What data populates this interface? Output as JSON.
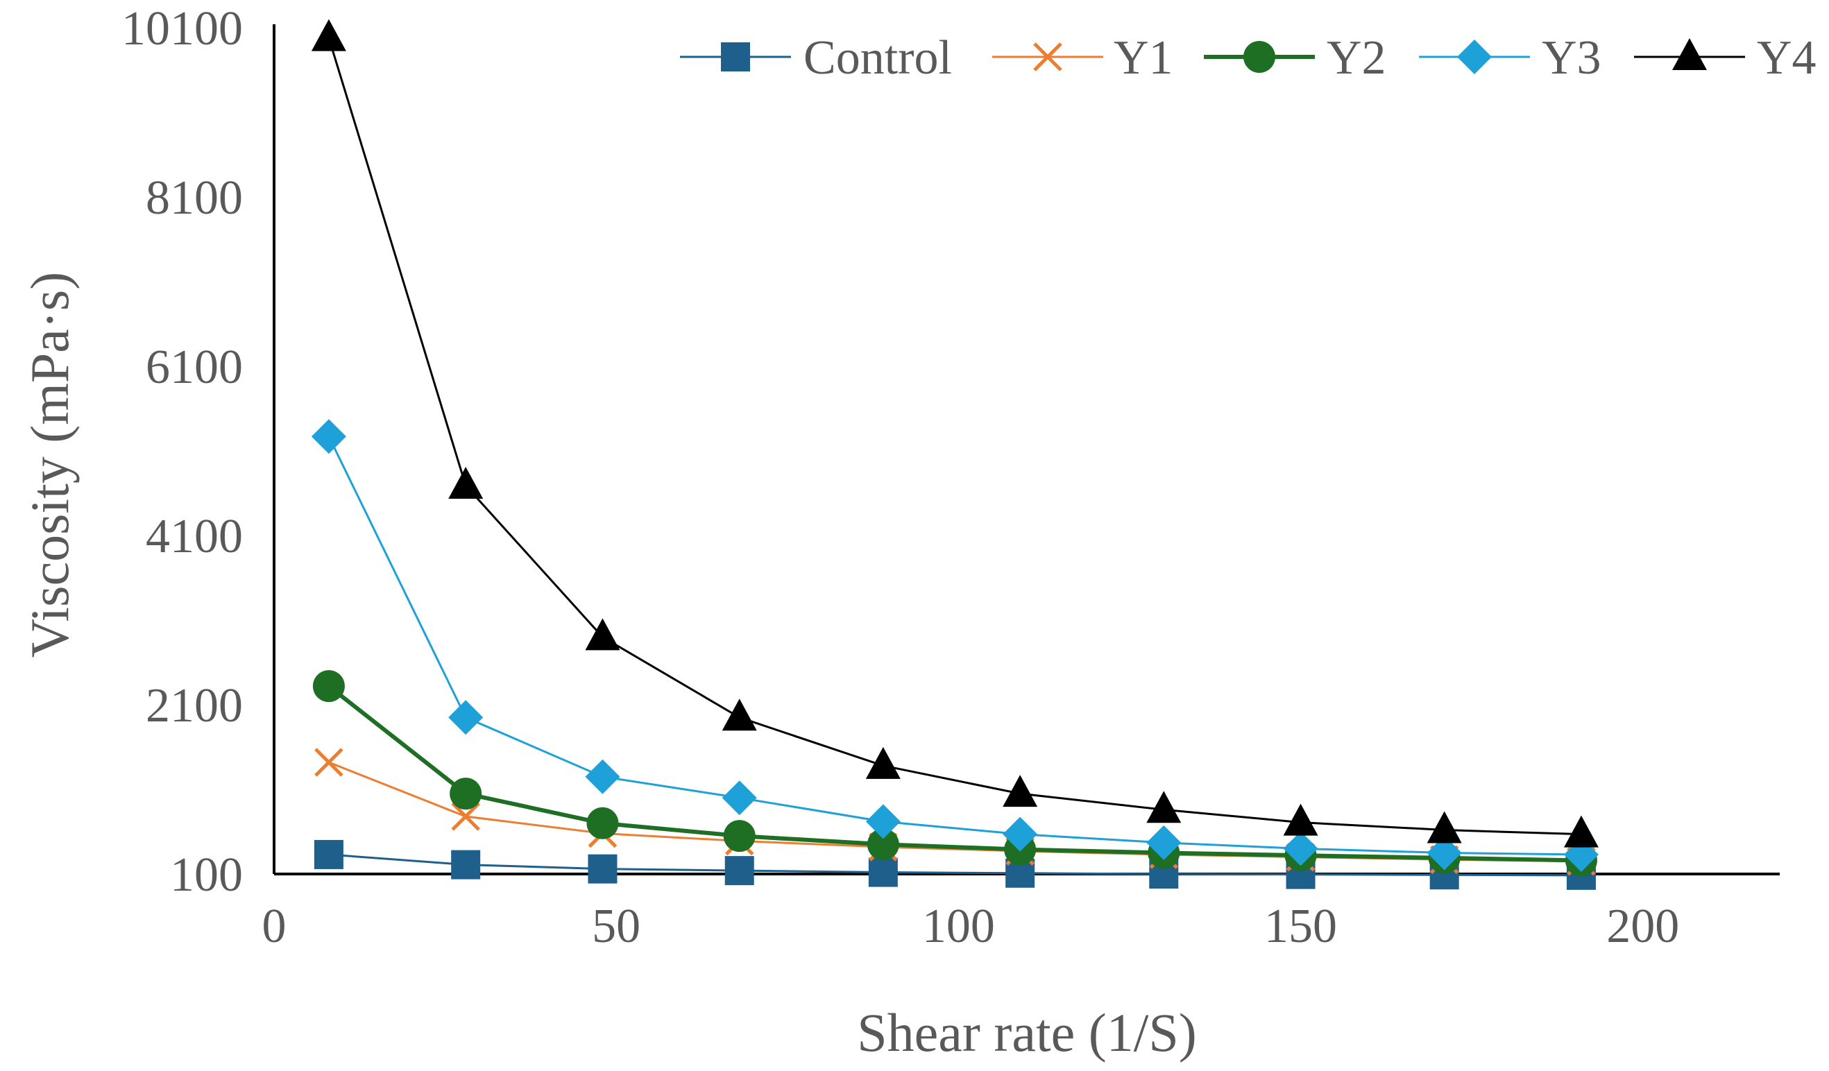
{
  "chart_data": {
    "type": "line",
    "title": "",
    "xlabel": "Shear rate (1/S)",
    "ylabel": "Viscosity (mPa·s)",
    "xlim": [
      0,
      220
    ],
    "ylim": [
      100,
      10100
    ],
    "xticks": [
      "0",
      "50",
      "100",
      "150",
      "200"
    ],
    "yticks": [
      "100",
      "2100",
      "4100",
      "6100",
      "8100",
      "10100"
    ],
    "grid": false,
    "legend_position": "top",
    "x": [
      8,
      28,
      48,
      68,
      89,
      109,
      130,
      150,
      171,
      191
    ],
    "series": [
      {
        "name": "Control",
        "color": "#1f5f8b",
        "marker": "square",
        "values": [
          330,
          210,
          160,
          140,
          120,
          110,
          100,
          95,
          90,
          85
        ]
      },
      {
        "name": "Y1",
        "color": "#ed7d31",
        "marker": "x",
        "values": [
          1420,
          780,
          580,
          490,
          420,
          370,
          330,
          300,
          270,
          250
        ]
      },
      {
        "name": "Y2",
        "color": "#1e6e23",
        "marker": "circle",
        "values": [
          2320,
          1050,
          700,
          550,
          450,
          390,
          350,
          320,
          290,
          260
        ]
      },
      {
        "name": "Y3",
        "color": "#1ea0d8",
        "marker": "diamond",
        "values": [
          5270,
          1950,
          1250,
          1000,
          720,
          570,
          470,
          400,
          350,
          330
        ]
      },
      {
        "name": "Y4",
        "color": "#000000",
        "marker": "triangle",
        "values": [
          9980,
          4690,
          2900,
          1950,
          1380,
          1050,
          860,
          710,
          620,
          570
        ]
      }
    ]
  }
}
